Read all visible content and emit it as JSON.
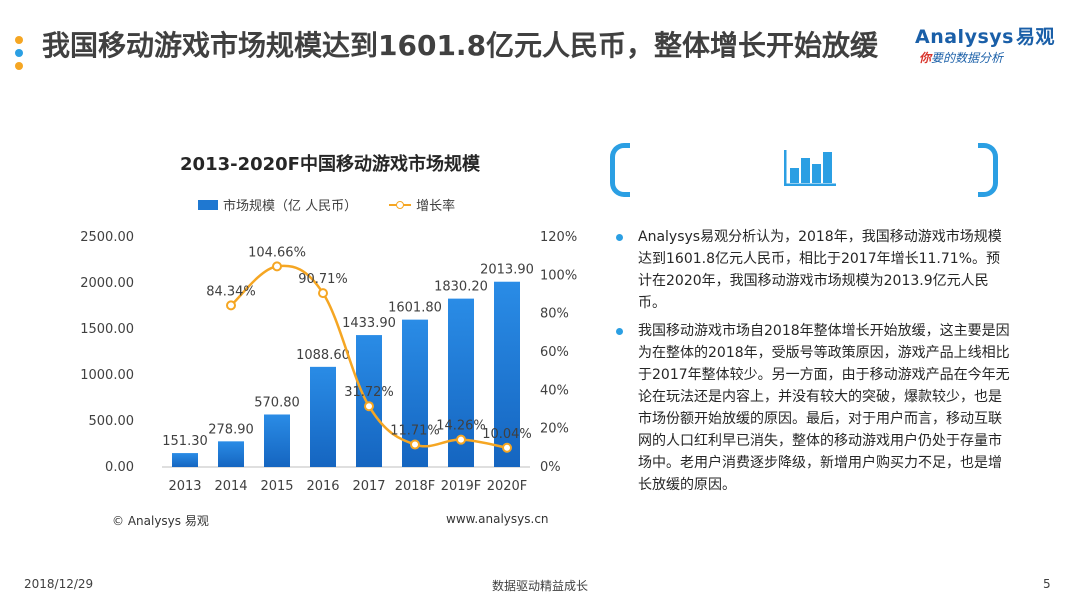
{
  "page": {
    "title": "我国移动游戏市场规模达到1601.8亿元人民币，整体增长开始放缓",
    "dot_colors": [
      "#f5a623",
      "#2b9fe3",
      "#f5a623"
    ]
  },
  "logo": {
    "brand": "Analysys",
    "brand_cn": "易观",
    "slogan_highlight": "你",
    "slogan_rest": "要的数据分析",
    "color": "#1a5fa8",
    "highlight_color": "#d9342b"
  },
  "chart_data": {
    "type": "bar",
    "title": "2013-2020F中国移动游戏市场规模",
    "categories": [
      "2013",
      "2014",
      "2015",
      "2016",
      "2017",
      "2018F",
      "2019F",
      "2020F"
    ],
    "series": [
      {
        "name": "市场规模（亿 人民币）",
        "type": "bar",
        "axis": "left",
        "color": "#1f78d1",
        "values": [
          151.3,
          278.9,
          570.8,
          1088.6,
          1433.9,
          1601.8,
          1830.2,
          2013.9
        ],
        "labels": [
          "151.30",
          "278.90",
          "570.80",
          "1088.60",
          "1433.90",
          "1601.80",
          "1830.20",
          "2013.90"
        ]
      },
      {
        "name": "增长率",
        "type": "line",
        "axis": "right",
        "color": "#f5a623",
        "values": [
          null,
          84.34,
          104.66,
          90.71,
          31.72,
          11.71,
          14.26,
          10.04
        ],
        "labels": [
          "",
          "84.34%",
          "104.66%",
          "90.71%",
          "31.72%",
          "11.71%",
          "14.26%",
          "10.04%"
        ]
      }
    ],
    "left_axis": {
      "min": 0,
      "max": 2500,
      "ticks": [
        "0.00",
        "500.00",
        "1000.00",
        "1500.00",
        "2000.00",
        "2500.00"
      ]
    },
    "right_axis": {
      "min": 0,
      "max": 120,
      "ticks": [
        "0%",
        "20%",
        "40%",
        "60%",
        "80%",
        "100%",
        "120%"
      ]
    },
    "grid": false,
    "legend_position": "top"
  },
  "chart_source_left": "© Analysys 易观",
  "chart_source_right": "www.analysys.cn",
  "bullets": [
    "Analysys易观分析认为，2018年，我国移动游戏市场规模达到1601.8亿元人民币，相比于2017年增长11.71%。预计在2020年，我国移动游戏市场规模为2013.9亿元人民币。",
    "我国移动游戏市场自2018年整体增长开始放缓，这主要是因为在整体的2018年，受版号等政策原因，游戏产品上线相比于2017年整体较少。另一方面，由于移动游戏产品在今年无论在玩法还是内容上，并没有较大的突破，爆款较少，也是市场份额开始放缓的原因。最后，对于用户而言，移动互联网的人口红利早已消失，整体的移动游戏用户仍处于存量市场中。老用户消费逐步降级，新增用户购买力不足，也是增长放缓的原因。"
  ],
  "footer": {
    "date": "2018/12/29",
    "center": "数据驱动精益成长",
    "page": "5"
  }
}
